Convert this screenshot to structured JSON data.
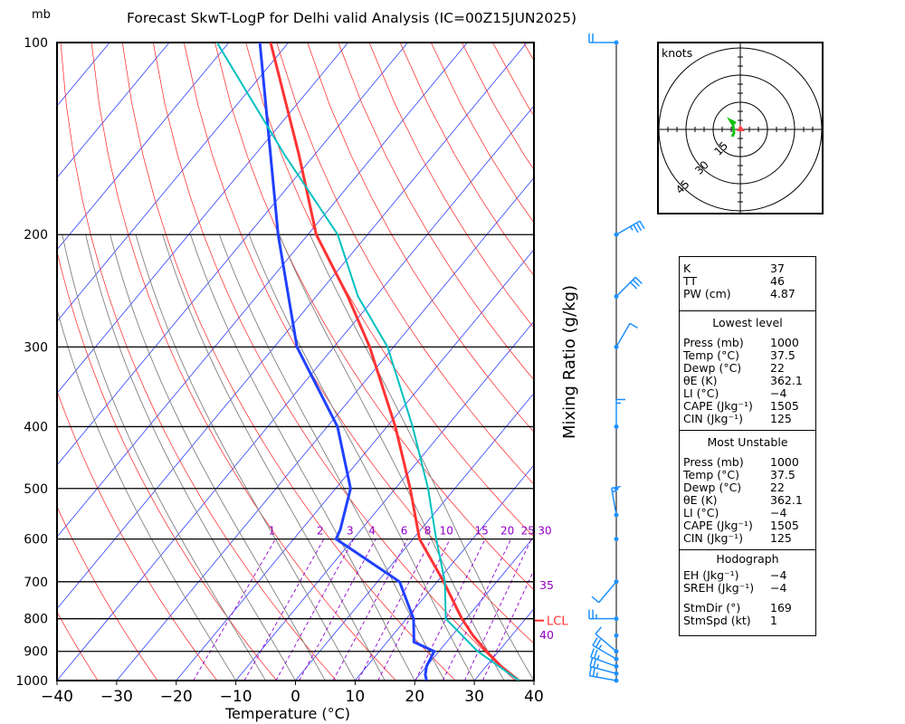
{
  "header": {
    "title": "Forecast SkwT-LogP for Delhi valid Analysis  (IC=00Z15JUN2025)",
    "unit_label": "mb"
  },
  "chart_data": {
    "type": "line",
    "title": "Forecast SkwT-LogP for Delhi valid Analysis  (IC=00Z15JUN2025)",
    "xlabel": "Temperature (°C)",
    "ylabel": "mb",
    "right_label": "Mixing Ratio (g/kg)",
    "xlim": [
      -40,
      40
    ],
    "ylim": [
      1000,
      100
    ],
    "x_ticks": [
      "−40",
      "−30",
      "−20",
      "−10",
      "0",
      "10",
      "20",
      "30",
      "40"
    ],
    "x_tick_values": [
      -40,
      -30,
      -20,
      -10,
      0,
      10,
      20,
      30,
      40
    ],
    "y_ticks": [
      "100",
      "200",
      "300",
      "400",
      "500",
      "600",
      "700",
      "800",
      "900",
      "1000"
    ],
    "y_tick_values": [
      100,
      200,
      300,
      400,
      500,
      600,
      700,
      800,
      900,
      1000
    ],
    "mixing_ratio_labels": [
      "1",
      "2",
      "3",
      "4",
      "6",
      "8",
      "10",
      "15",
      "20",
      "25",
      "30"
    ],
    "mixing_ratio_values": [
      1,
      2,
      3,
      4,
      6,
      8,
      10,
      15,
      20,
      25,
      30
    ],
    "theta_e_labels": [
      "35",
      "40"
    ],
    "lcl_label": "LCL",
    "lcl_pressure": 800,
    "series": [
      {
        "name": "temperature",
        "color": "#ff3333",
        "p": [
          1000,
          950,
          900,
          850,
          800,
          700,
          600,
          500,
          400,
          300,
          250,
          200,
          150,
          100
        ],
        "t": [
          37.5,
          32.5,
          28.0,
          23.5,
          19.3,
          11.1,
          1.1,
          -7.5,
          -18.6,
          -34.0,
          -44.7,
          -58.6,
          -72.6,
          -93.0
        ]
      },
      {
        "name": "dewpoint",
        "color": "#2040ff",
        "p": [
          1000,
          980,
          950,
          900,
          870,
          800,
          700,
          600,
          580,
          500,
          400,
          300,
          200,
          100
        ],
        "t": [
          22.0,
          21.0,
          20.0,
          19.2,
          14.5,
          11.2,
          3.7,
          -12.9,
          -13.5,
          -17.5,
          -28.3,
          -46.2,
          -65.0,
          -94.8
        ]
      },
      {
        "name": "parcel",
        "color": "#00c0c0",
        "p": [
          1000,
          900,
          800,
          700,
          600,
          500,
          400,
          300,
          250,
          200,
          150,
          100
        ],
        "t": [
          37.5,
          26.5,
          16.6,
          11.3,
          3.9,
          -4.5,
          -15.7,
          -31.0,
          -43.0,
          -55.0,
          -75.0,
          -102.0
        ]
      }
    ],
    "winds": [
      {
        "p": 100,
        "dir": 270,
        "spd": 20
      },
      {
        "p": 200,
        "dir": 60,
        "spd": 25
      },
      {
        "p": 250,
        "dir": 45,
        "spd": 30
      },
      {
        "p": 300,
        "dir": 30,
        "spd": 10
      },
      {
        "p": 400,
        "dir": 0,
        "spd": 5
      },
      {
        "p": 500,
        "dir": 340,
        "spd": 0
      },
      {
        "p": 550,
        "dir": 350,
        "spd": 5
      },
      {
        "p": 600,
        "dir": 330,
        "spd": 0
      },
      {
        "p": 700,
        "dir": 220,
        "spd": 10
      },
      {
        "p": 800,
        "dir": 270,
        "spd": 15
      },
      {
        "p": 850,
        "dir": 300,
        "spd": 0
      },
      {
        "p": 900,
        "dir": 310,
        "spd": 10
      },
      {
        "p": 925,
        "dir": 300,
        "spd": 15
      },
      {
        "p": 950,
        "dir": 290,
        "spd": 15
      },
      {
        "p": 975,
        "dir": 285,
        "spd": 15
      },
      {
        "p": 1000,
        "dir": 280,
        "spd": 15
      }
    ]
  },
  "hodograph": {
    "unit_label": "knots",
    "rings": [
      "15",
      "30",
      "45"
    ]
  },
  "indices": {
    "rows": [
      {
        "k": "K",
        "v": "37"
      },
      {
        "k": "TT",
        "v": "46"
      },
      {
        "k": "PW (cm)",
        "v": "4.87"
      }
    ]
  },
  "lowest_level": {
    "title": "Lowest level",
    "rows": [
      {
        "k": "Press (mb)",
        "v": "1000"
      },
      {
        "k": "Temp (°C)",
        "v": "37.5"
      },
      {
        "k": "Dewp (°C)",
        "v": "22"
      },
      {
        "k": "θE (K)",
        "v": "362.1"
      },
      {
        "k": "LI (°C)",
        "v": "−4"
      },
      {
        "k": "CAPE (Jkg⁻¹)",
        "v": "1505"
      },
      {
        "k": "CIN (Jkg⁻¹)",
        "v": "125"
      }
    ]
  },
  "most_unstable": {
    "title": "Most Unstable",
    "rows": [
      {
        "k": "Press (mb)",
        "v": "1000"
      },
      {
        "k": "Temp (°C)",
        "v": "37.5"
      },
      {
        "k": "Dewp (°C)",
        "v": "22"
      },
      {
        "k": "θE (K)",
        "v": "362.1"
      },
      {
        "k": "LI (°C)",
        "v": "−4"
      },
      {
        "k": "CAPE (Jkg⁻¹)",
        "v": "1505"
      },
      {
        "k": "CIN (Jkg⁻¹)",
        "v": "125"
      }
    ]
  },
  "hodo_stats": {
    "title": "Hodograph",
    "rows": [
      {
        "k": "EH (Jkg⁻¹)",
        "v": "−4"
      },
      {
        "k": "SREH (Jkg⁻¹)",
        "v": "−4"
      }
    ],
    "rows2": [
      {
        "k": "StmDir (°)",
        "v": "169"
      },
      {
        "k": "StmSpd (kt)",
        "v": "1"
      }
    ]
  }
}
